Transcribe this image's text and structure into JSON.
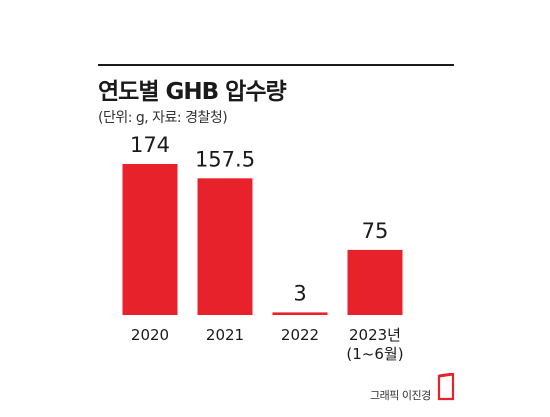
{
  "chart_data": {
    "type": "bar",
    "title": "연도별 GHB 압수량",
    "subtitle": "(단위: g, 자료: 경찰청)",
    "categories": [
      "2020",
      "2021",
      "2022",
      "2023년\n(1~6월)"
    ],
    "values": [
      174,
      157.5,
      3,
      75
    ],
    "value_labels": [
      "174",
      "157.5",
      "3",
      "75"
    ],
    "ylim": [
      0,
      174
    ],
    "grid": false,
    "bar_color": "#e8222a",
    "xlabel": "",
    "ylabel": ""
  },
  "credit": "그래픽 이진경",
  "colors": {
    "accent": "#e8222a",
    "text": "#1a1a1a"
  }
}
